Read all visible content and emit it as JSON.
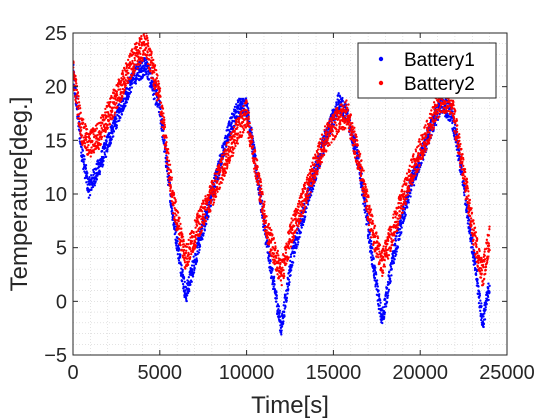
{
  "chart_data": {
    "type": "scatter",
    "xlabel": "Time[s]",
    "ylabel": "Temperature[deg.]",
    "xlim": [
      0,
      25000
    ],
    "ylim": [
      -5,
      25
    ],
    "xticks": [
      0,
      5000,
      10000,
      15000,
      20000,
      25000
    ],
    "yticks": [
      -5,
      0,
      5,
      10,
      15,
      20,
      25
    ],
    "xtick_labels": [
      "0",
      "5000",
      "10000",
      "15000",
      "20000",
      "25000"
    ],
    "ytick_labels": [
      "−5",
      "0",
      "5",
      "10",
      "15",
      "20",
      "25"
    ],
    "grid": "minor-dotted",
    "legend_position": "top-right",
    "series": [
      {
        "name": "Battery1",
        "color": "#0000ff",
        "band": 0.9,
        "x": [
          0,
          500,
          900,
          1500,
          2500,
          3500,
          4200,
          5000,
          5800,
          6500,
          7200,
          8000,
          9000,
          9500,
          10000,
          10500,
          11200,
          12000,
          12600,
          13500,
          14500,
          15300,
          15800,
          16500,
          17200,
          17800,
          18500,
          19500,
          20500,
          21200,
          21800,
          22500,
          23100,
          23600,
          24000
        ],
        "y": [
          21.5,
          14,
          10.5,
          12.5,
          17,
          21,
          22,
          18,
          7.5,
          0.5,
          5,
          10,
          16,
          18,
          18.2,
          13,
          5,
          -2.5,
          4,
          9.5,
          15,
          18.5,
          17.5,
          12.5,
          4.5,
          -1.8,
          4.5,
          11,
          15.5,
          18.5,
          17.5,
          11,
          4,
          -2,
          1.5
        ]
      },
      {
        "name": "Battery2",
        "color": "#ff0000",
        "band": 1.3,
        "x": [
          0,
          500,
          900,
          1500,
          2500,
          3500,
          4200,
          5000,
          5800,
          6500,
          7200,
          8000,
          9000,
          9500,
          10000,
          10500,
          11200,
          12000,
          12600,
          13500,
          14500,
          15300,
          15800,
          16500,
          17200,
          17800,
          18500,
          19500,
          20500,
          21200,
          21800,
          22500,
          23100,
          23600,
          24000
        ],
        "y": [
          21.5,
          16,
          14.5,
          15.5,
          19,
          22.5,
          24,
          19,
          9,
          4,
          7,
          10,
          14,
          16,
          17.5,
          13,
          6.5,
          2.5,
          6.5,
          10.5,
          15,
          17,
          17.5,
          13,
          7,
          3.5,
          7,
          12,
          16,
          19,
          18.5,
          12,
          6,
          2.5,
          6
        ]
      }
    ]
  }
}
